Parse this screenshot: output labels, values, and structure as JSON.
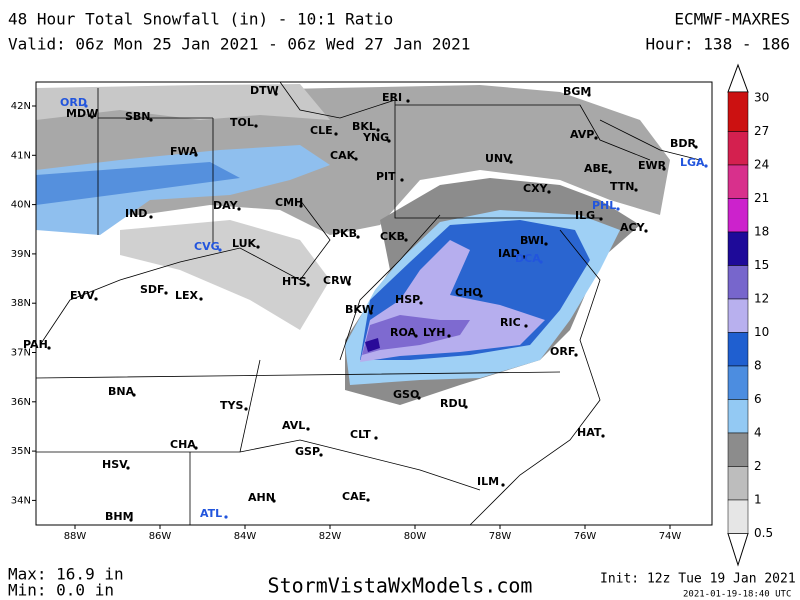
{
  "header": {
    "title": "48 Hour Total Snowfall (in) - 10:1 Ratio",
    "valid": "Valid: 06z Mon 25 Jan 2021 - 06z Wed 27 Jan 2021",
    "model": "ECMWF-MAXRES",
    "hour": "Hour: 138 - 186"
  },
  "map": {
    "lon_labels": [
      "88W",
      "86W",
      "84W",
      "82W",
      "80W",
      "78W",
      "76W",
      "74W"
    ],
    "lat_labels": [
      "42N",
      "41N",
      "40N",
      "39N",
      "38N",
      "37N",
      "36N",
      "35N",
      "34N"
    ],
    "cities": [
      "ORD",
      "MDW",
      "SBN",
      "DTW",
      "TOL",
      "CLE",
      "ERI",
      "BKL",
      "YNG",
      "BGM",
      "AVP",
      "BDR",
      "FWA",
      "CAK",
      "UNV",
      "ABE",
      "EWR",
      "LGA",
      "TTN",
      "PIT",
      "CXY",
      "PHL",
      "ILG",
      "ACY",
      "IND",
      "DAY",
      "CMH",
      "PKB",
      "CKB",
      "BWI",
      "IAD",
      "DCA",
      "CVG",
      "LUK",
      "HTS",
      "CRW",
      "CHO",
      "SDF",
      "LEX",
      "EVV",
      "BKW",
      "HSP",
      "RIC",
      "ROA",
      "LYH",
      "PAH",
      "ORF",
      "BNA",
      "GSO",
      "RDU",
      "TYS",
      "AVL",
      "CLT",
      "HAT",
      "CHA",
      "GSP",
      "HSV",
      "ILM",
      "AHN",
      "CAE",
      "BHM",
      "ATL"
    ]
  },
  "colorbar": {
    "labels": [
      30,
      27,
      24,
      21,
      18,
      15,
      12,
      10,
      8,
      6,
      4,
      2,
      1,
      0.5
    ]
  },
  "footer": {
    "max": "Max: 16.9 in",
    "min": "Min: 0.0 in",
    "site": "StormVistaWxModels.com",
    "init": "Init: 12z Tue 19 Jan 2021",
    "stamp": "2021-01-19-18:40 UTC"
  }
}
